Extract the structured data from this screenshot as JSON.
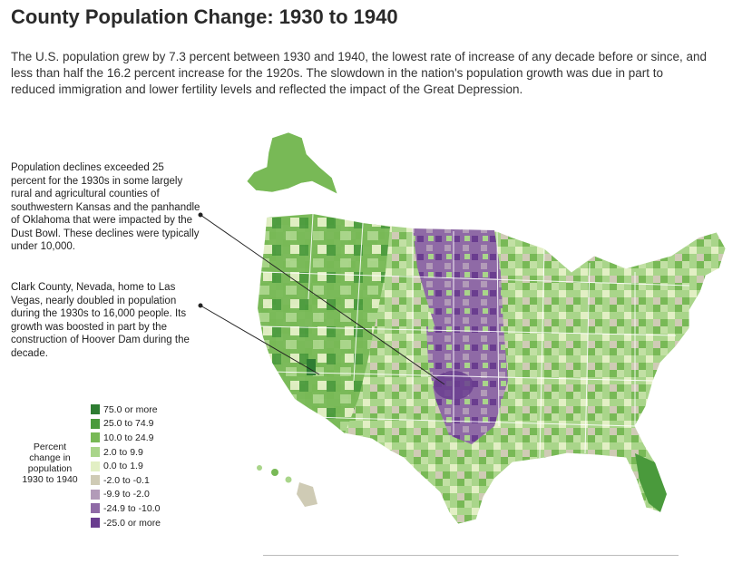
{
  "title": "County Population Change: 1930 to 1940",
  "intro": "The U.S. population grew by 7.3 percent between 1930 and 1940, the lowest rate of increase of any decade before or since, and less than half the 16.2 percent increase for the 1920s. The slowdown in the nation's population growth was due in part to reduced immigration and lower fertility levels and reflected the impact of the Great Depression.",
  "annotations": {
    "dust_bowl": "Population declines exceeded 25 percent for the 1930s in some largely rural and agricultural counties of southwestern Kansas and the panhandle of Oklahoma that were impacted by the Dust Bowl. These declines were typically under 10,000.",
    "clark_county": "Clark County, Nevada, home to Las Vegas, nearly doubled in population during the 1930s to 16,000 people. Its growth was boosted in part by the construction of Hoover Dam during the decade."
  },
  "legend": {
    "title": "Percent change in population 1930 to 1940",
    "items": [
      {
        "label": "75.0 or more",
        "color": "#2e7d32"
      },
      {
        "label": "25.0 to 74.9",
        "color": "#4a9a3c"
      },
      {
        "label": "10.0 to 24.9",
        "color": "#78b956"
      },
      {
        "label": "2.0 to 9.9",
        "color": "#a9d58a"
      },
      {
        "label": "0.0 to 1.9",
        "color": "#e2efc4"
      },
      {
        "label": "-2.0 to -0.1",
        "color": "#cfcbb5"
      },
      {
        "label": "-9.9 to -2.0",
        "color": "#b29bb8"
      },
      {
        "label": "-24.9 to -10.0",
        "color": "#8f6aa6"
      },
      {
        "label": "-25.0 or more",
        "color": "#6a3d8f"
      }
    ]
  }
}
